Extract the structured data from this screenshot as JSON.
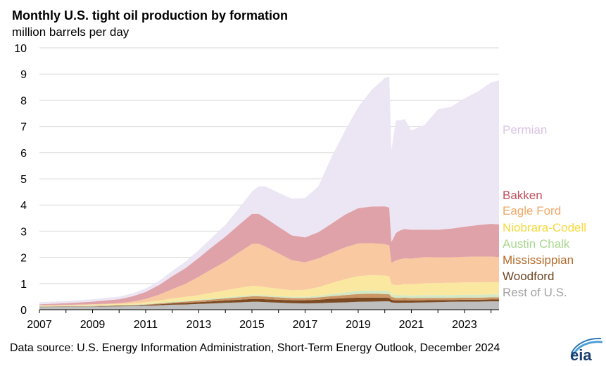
{
  "header": {
    "title": "Monthly U.S. tight oil production by formation",
    "subtitle": "million  barrels per day"
  },
  "footer": {
    "source": "Data source: U.S. Energy Information Administration, Short-Term Energy Outlook, December 2024",
    "logo_text": "eia"
  },
  "chart_data": {
    "type": "area",
    "stacked": true,
    "title": "Monthly U.S. tight oil production by formation",
    "ylabel": "million  barrels per day",
    "ylim": [
      0,
      10
    ],
    "xlim": [
      2007,
      2024.3
    ],
    "yticks": [
      0,
      1,
      2,
      3,
      4,
      5,
      6,
      7,
      8,
      9,
      10
    ],
    "xticks": [
      2007,
      2009,
      2011,
      2013,
      2015,
      2017,
      2019,
      2021,
      2023
    ],
    "xtick_labels": [
      "2007",
      "2009",
      "2011",
      "2013",
      "2015",
      "2017",
      "2019",
      "2021",
      "2023"
    ],
    "grid": true,
    "legend_placement": "right (direct labels)",
    "x": [
      2007,
      2008,
      2009,
      2010,
      2010.5,
      2011,
      2011.5,
      2012,
      2012.5,
      2013,
      2013.5,
      2014,
      2014.5,
      2015,
      2015.25,
      2015.5,
      2016,
      2016.5,
      2017,
      2017.5,
      2018,
      2018.5,
      2019,
      2019.5,
      2020,
      2020.17,
      2020.25,
      2020.42,
      2020.58,
      2020.75,
      2021,
      2021.5,
      2022,
      2022.5,
      2023,
      2023.5,
      2024,
      2024.3
    ],
    "series": [
      {
        "name": "Rest of U.S.",
        "color": "#bebebe",
        "values": [
          0.1,
          0.11,
          0.12,
          0.13,
          0.14,
          0.15,
          0.17,
          0.19,
          0.2,
          0.22,
          0.24,
          0.26,
          0.28,
          0.3,
          0.3,
          0.29,
          0.27,
          0.25,
          0.24,
          0.25,
          0.27,
          0.28,
          0.3,
          0.31,
          0.32,
          0.32,
          0.28,
          0.26,
          0.26,
          0.27,
          0.27,
          0.28,
          0.29,
          0.3,
          0.31,
          0.31,
          0.32,
          0.32
        ]
      },
      {
        "name": "Woodford",
        "color": "#7b4a22",
        "values": [
          0.01,
          0.01,
          0.01,
          0.02,
          0.02,
          0.03,
          0.04,
          0.05,
          0.06,
          0.07,
          0.08,
          0.09,
          0.1,
          0.11,
          0.11,
          0.11,
          0.11,
          0.11,
          0.12,
          0.13,
          0.15,
          0.16,
          0.16,
          0.15,
          0.14,
          0.13,
          0.1,
          0.09,
          0.09,
          0.09,
          0.08,
          0.08,
          0.08,
          0.07,
          0.07,
          0.07,
          0.07,
          0.07
        ]
      },
      {
        "name": "Mississippian",
        "color": "#cc9564",
        "values": [
          0.01,
          0.01,
          0.01,
          0.01,
          0.01,
          0.02,
          0.03,
          0.04,
          0.05,
          0.06,
          0.07,
          0.08,
          0.09,
          0.1,
          0.1,
          0.1,
          0.09,
          0.08,
          0.08,
          0.09,
          0.1,
          0.12,
          0.14,
          0.15,
          0.14,
          0.14,
          0.11,
          0.1,
          0.1,
          0.1,
          0.09,
          0.09,
          0.08,
          0.08,
          0.08,
          0.08,
          0.08,
          0.08
        ]
      },
      {
        "name": "Austin Chalk",
        "color": "#d3e8c5",
        "values": [
          0.02,
          0.02,
          0.02,
          0.02,
          0.02,
          0.02,
          0.02,
          0.03,
          0.03,
          0.03,
          0.04,
          0.04,
          0.05,
          0.05,
          0.05,
          0.05,
          0.05,
          0.05,
          0.05,
          0.06,
          0.08,
          0.1,
          0.12,
          0.13,
          0.12,
          0.12,
          0.1,
          0.1,
          0.1,
          0.1,
          0.1,
          0.11,
          0.11,
          0.11,
          0.11,
          0.11,
          0.12,
          0.12
        ]
      },
      {
        "name": "Niobrara-Codell",
        "color": "#fbe8a0",
        "values": [
          0.02,
          0.02,
          0.03,
          0.04,
          0.05,
          0.07,
          0.09,
          0.12,
          0.15,
          0.18,
          0.22,
          0.27,
          0.31,
          0.35,
          0.34,
          0.31,
          0.28,
          0.25,
          0.27,
          0.33,
          0.42,
          0.5,
          0.56,
          0.58,
          0.58,
          0.57,
          0.4,
          0.38,
          0.4,
          0.42,
          0.43,
          0.45,
          0.46,
          0.47,
          0.47,
          0.47,
          0.46,
          0.45
        ]
      },
      {
        "name": "Eagle Ford",
        "color": "#f9c9a1",
        "values": [
          0.01,
          0.01,
          0.02,
          0.03,
          0.07,
          0.12,
          0.22,
          0.35,
          0.5,
          0.7,
          0.9,
          1.1,
          1.35,
          1.6,
          1.62,
          1.55,
          1.35,
          1.15,
          1.05,
          1.1,
          1.15,
          1.22,
          1.25,
          1.22,
          1.2,
          1.18,
          0.8,
          0.95,
          0.98,
          0.98,
          0.98,
          1.0,
          0.98,
          0.97,
          0.98,
          0.99,
          0.98,
          0.97
        ]
      },
      {
        "name": "Bakken",
        "color": "#e0a2a9",
        "values": [
          0.04,
          0.07,
          0.1,
          0.15,
          0.2,
          0.27,
          0.37,
          0.5,
          0.6,
          0.72,
          0.85,
          0.95,
          1.05,
          1.15,
          1.14,
          1.1,
          1.02,
          0.95,
          0.95,
          1.0,
          1.12,
          1.25,
          1.35,
          1.4,
          1.45,
          1.44,
          0.8,
          1.05,
          1.1,
          1.12,
          1.1,
          1.05,
          1.05,
          1.1,
          1.15,
          1.2,
          1.25,
          1.25
        ]
      },
      {
        "name": "Permian",
        "color": "#ece6f4",
        "values": [
          0.08,
          0.08,
          0.09,
          0.1,
          0.11,
          0.13,
          0.16,
          0.2,
          0.25,
          0.3,
          0.36,
          0.45,
          0.63,
          0.85,
          1.05,
          1.2,
          1.3,
          1.4,
          1.5,
          1.75,
          2.55,
          3.2,
          3.85,
          4.45,
          4.9,
          5.0,
          3.5,
          4.3,
          4.2,
          4.2,
          3.8,
          4.0,
          4.6,
          4.65,
          4.9,
          5.1,
          5.4,
          5.5
        ]
      }
    ],
    "label_order_top_to_bottom": [
      "Permian",
      "Bakken",
      "Eagle Ford",
      "Niobrara-Codell",
      "Austin Chalk",
      "Mississippian",
      "Woodford",
      "Rest of U.S."
    ],
    "label_colors": {
      "Permian": "#d9c5e3",
      "Bakken": "#c0505d",
      "Eagle Ford": "#f0a868",
      "Niobrara-Codell": "#f5d93a",
      "Austin Chalk": "#a8d88e",
      "Mississippian": "#b36b2a",
      "Woodford": "#6b4421",
      "Rest of U.S.": "#a3a3a3"
    }
  }
}
